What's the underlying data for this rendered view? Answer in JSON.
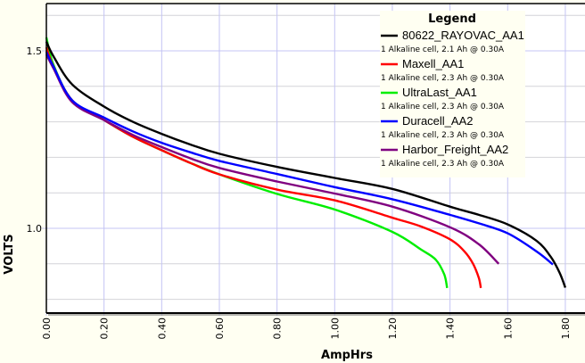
{
  "chart_data": {
    "type": "line",
    "title": "",
    "xlabel": "AmpHrs",
    "ylabel": "VOLTS",
    "xlim": [
      0.0,
      1.85
    ],
    "ylim": [
      0.765,
      1.63
    ],
    "x_ticks": [
      "0.00",
      "0.20",
      "0.40",
      "0.60",
      "0.80",
      "1.00",
      "1.20",
      "1.40",
      "1.60",
      "1.80"
    ],
    "x_tick_values": [
      0.0,
      0.2,
      0.4,
      0.6,
      0.8,
      1.0,
      1.2,
      1.4,
      1.6,
      1.8
    ],
    "y_ticks": [
      "1.5",
      "1.0"
    ],
    "y_tick_values": [
      1.5,
      1.0
    ],
    "y_minor_grid": [
      0.8,
      0.9,
      1.1,
      1.2,
      1.3,
      1.4,
      1.6
    ],
    "grid": true,
    "legend": {
      "title": "Legend",
      "placement": "top-right"
    },
    "series": [
      {
        "name": "80622_RAYOVAC_AA1",
        "description": "1 Alkaline cell, 2.1 Ah @ 0.30A",
        "color": "#000000",
        "points": [
          [
            0,
            1.526
          ],
          [
            0.025,
            1.484
          ],
          [
            0.09,
            1.405
          ],
          [
            0.2,
            1.343
          ],
          [
            0.3,
            1.3
          ],
          [
            0.4,
            1.266
          ],
          [
            0.5,
            1.236
          ],
          [
            0.6,
            1.21
          ],
          [
            0.8,
            1.173
          ],
          [
            1.0,
            1.142
          ],
          [
            1.2,
            1.111
          ],
          [
            1.4,
            1.061
          ],
          [
            1.5,
            1.038
          ],
          [
            1.6,
            1.011
          ],
          [
            1.7,
            0.965
          ],
          [
            1.75,
            0.919
          ],
          [
            1.78,
            0.875
          ],
          [
            1.8,
            0.833
          ]
        ]
      },
      {
        "name": "Maxell_AA1",
        "description": "1 Alkaline cell, 2.3 Ah @ 0.30A",
        "color": "#ff0000",
        "points": [
          [
            0,
            1.51
          ],
          [
            0.025,
            1.455
          ],
          [
            0.09,
            1.36
          ],
          [
            0.2,
            1.305
          ],
          [
            0.3,
            1.258
          ],
          [
            0.4,
            1.22
          ],
          [
            0.5,
            1.184
          ],
          [
            0.6,
            1.152
          ],
          [
            0.8,
            1.109
          ],
          [
            1.0,
            1.079
          ],
          [
            1.2,
            1.03
          ],
          [
            1.3,
            1.005
          ],
          [
            1.4,
            0.969
          ],
          [
            1.45,
            0.935
          ],
          [
            1.48,
            0.9
          ],
          [
            1.5,
            0.86
          ],
          [
            1.507,
            0.832
          ]
        ]
      },
      {
        "name": "UltraLast_AA1",
        "description": "1 Alkaline cell, 2.3 Ah @ 0.30A",
        "color": "#00ee00",
        "points": [
          [
            0,
            1.538
          ],
          [
            0.025,
            1.46
          ],
          [
            0.09,
            1.36
          ],
          [
            0.2,
            1.305
          ],
          [
            0.3,
            1.258
          ],
          [
            0.4,
            1.22
          ],
          [
            0.5,
            1.184
          ],
          [
            0.6,
            1.152
          ],
          [
            0.8,
            1.097
          ],
          [
            1.0,
            1.053
          ],
          [
            1.2,
            0.99
          ],
          [
            1.3,
            0.94
          ],
          [
            1.35,
            0.912
          ],
          [
            1.38,
            0.87
          ],
          [
            1.39,
            0.832
          ]
        ]
      },
      {
        "name": "Duracell_AA2",
        "description": "1 Alkaline cell, 2.3 Ah @ 0.30A",
        "color": "#0000ff",
        "points": [
          [
            0,
            1.497
          ],
          [
            0.025,
            1.455
          ],
          [
            0.09,
            1.36
          ],
          [
            0.2,
            1.312
          ],
          [
            0.3,
            1.273
          ],
          [
            0.4,
            1.241
          ],
          [
            0.5,
            1.214
          ],
          [
            0.6,
            1.19
          ],
          [
            0.8,
            1.153
          ],
          [
            1.0,
            1.116
          ],
          [
            1.2,
            1.082
          ],
          [
            1.4,
            1.038
          ],
          [
            1.5,
            1.014
          ],
          [
            1.6,
            0.986
          ],
          [
            1.7,
            0.935
          ],
          [
            1.757,
            0.898
          ]
        ]
      },
      {
        "name": "Harbor_Freight_AA2",
        "description": "1 Alkaline cell, 2.3 Ah @ 0.30A",
        "color": "#800080",
        "points": [
          [
            0,
            1.49
          ],
          [
            0.025,
            1.45
          ],
          [
            0.09,
            1.355
          ],
          [
            0.2,
            1.305
          ],
          [
            0.3,
            1.263
          ],
          [
            0.4,
            1.229
          ],
          [
            0.5,
            1.197
          ],
          [
            0.6,
            1.17
          ],
          [
            0.8,
            1.132
          ],
          [
            1.0,
            1.098
          ],
          [
            1.2,
            1.061
          ],
          [
            1.4,
            1.003
          ],
          [
            1.5,
            0.955
          ],
          [
            1.569,
            0.9
          ]
        ]
      }
    ]
  }
}
